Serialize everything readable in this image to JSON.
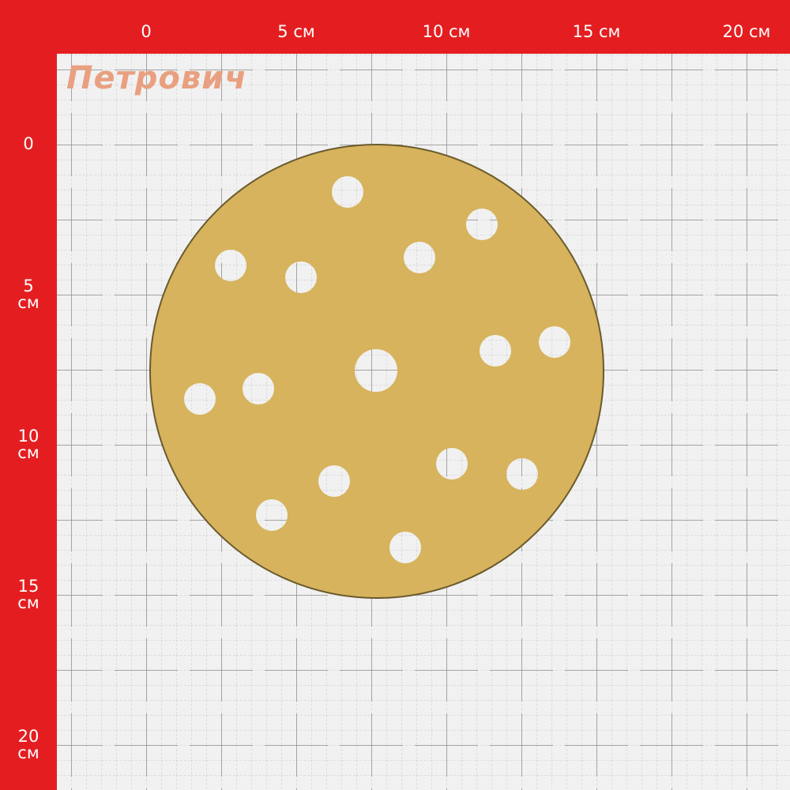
{
  "brand": {
    "logo_text": "Петрович",
    "color": "#e9a080"
  },
  "ruler": {
    "frame_color": "#e41e20",
    "x_labels": [
      "0",
      "5 см",
      "10 см",
      "15 см",
      "20 см"
    ],
    "y_labels": [
      {
        "num": "0",
        "unit": ""
      },
      {
        "num": "5",
        "unit": "см"
      },
      {
        "num": "10",
        "unit": "см"
      },
      {
        "num": "15",
        "unit": "см"
      },
      {
        "num": "20",
        "unit": "см"
      }
    ]
  },
  "product": {
    "name": "sanding-disc",
    "color": "#d8b45a",
    "holes": 15
  }
}
